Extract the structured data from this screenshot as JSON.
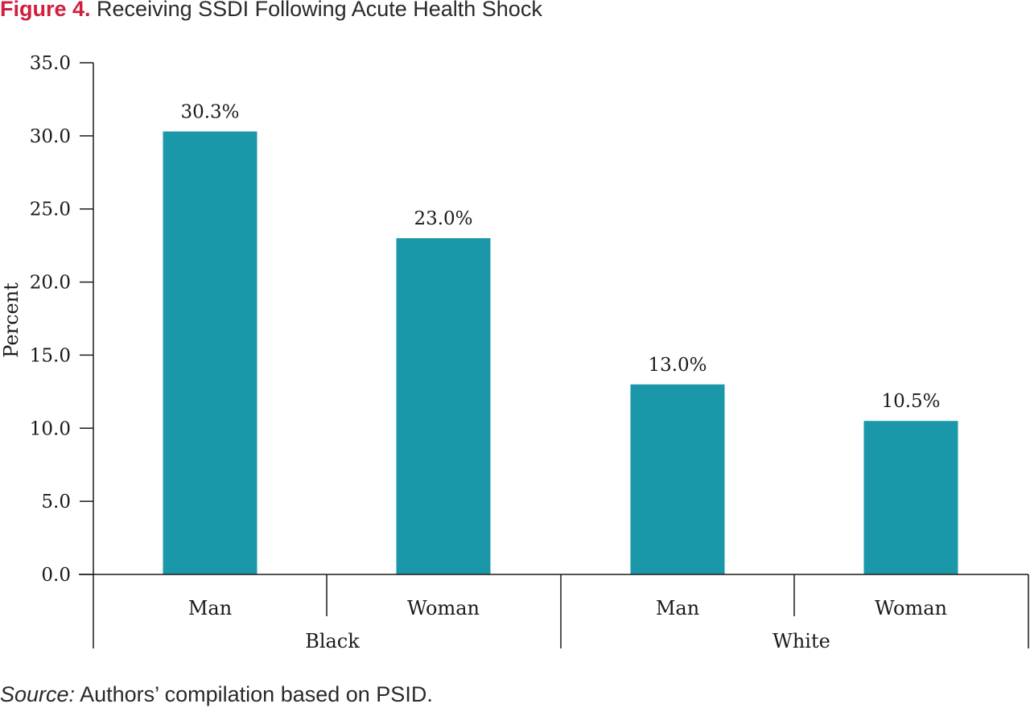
{
  "figure": {
    "label": "Figure 4.",
    "title": "Receiving SSDI Following Acute Health Shock",
    "source_label": "Source:",
    "source_text": "Authors’ compilation based on PSID."
  },
  "chart_data": {
    "type": "bar",
    "ylabel": "Percent",
    "ylim": [
      0,
      35
    ],
    "yticks": [
      "0.0",
      "5.0",
      "10.0",
      "15.0",
      "20.0",
      "25.0",
      "30.0",
      "35.0"
    ],
    "categories": [
      "Man",
      "Woman",
      "Man",
      "Woman"
    ],
    "groups": [
      "Black",
      "White"
    ],
    "values": [
      30.3,
      23.0,
      13.0,
      10.5
    ],
    "data_labels": [
      "30.3%",
      "23.0%",
      "13.0%",
      "10.5%"
    ],
    "bar_color": "#1b97aa",
    "grid": false
  }
}
